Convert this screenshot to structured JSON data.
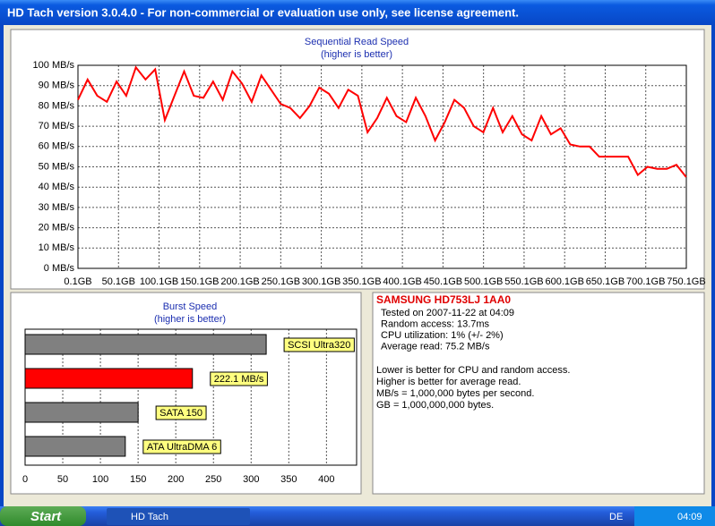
{
  "window": {
    "title": "HD Tach version 3.0.4.0  - For non-commercial or evaluation use only, see license agreement."
  },
  "chart_data": [
    {
      "type": "line",
      "title": "Sequential Read Speed",
      "subtitle": "(higher is better)",
      "x": [
        0.1,
        12,
        23.9,
        35.8,
        47.7,
        59.6,
        71.5,
        83.4,
        95.3,
        107.2,
        119.1,
        131,
        142.9,
        154.8,
        166.7,
        178.6,
        190.5,
        202.4,
        214.3,
        226.2,
        238.1,
        250,
        261.9,
        273.8,
        285.7,
        297.6,
        309.5,
        321.4,
        333.3,
        345.2,
        357.1,
        369,
        380.9,
        392.8,
        404.7,
        416.6,
        428.5,
        440.4,
        452.3,
        464.2,
        476.1,
        488,
        499.9,
        511.8,
        523.7,
        535.6,
        547.5,
        559.4,
        571.3,
        583.2,
        595.1,
        607,
        618.9,
        630.8,
        642.7,
        654.6,
        666.5,
        678.4,
        690.3,
        702.2,
        714.1,
        726,
        737.9,
        749.8
      ],
      "series": [
        {
          "name": "Read",
          "color": "#ff0000",
          "values": [
            83,
            93,
            85,
            82,
            92,
            85,
            99,
            93,
            98,
            73,
            85,
            97,
            85,
            84,
            92,
            83,
            97,
            91,
            82,
            95,
            88,
            81,
            79,
            74,
            80,
            89,
            86,
            79,
            88,
            85,
            67,
            74,
            84,
            75,
            72,
            84,
            75,
            63,
            72,
            83,
            79,
            70,
            67,
            79,
            67,
            75,
            66,
            63,
            75,
            66,
            69,
            61,
            60,
            60,
            55,
            55,
            55,
            55,
            46,
            50,
            49,
            49,
            51,
            45
          ]
        }
      ],
      "xlim": [
        0.1,
        750.1
      ],
      "xticks": [
        {
          "value": 0.1,
          "label": "0.1GB"
        },
        {
          "value": 50.1,
          "label": "50.1GB"
        },
        {
          "value": 100.1,
          "label": "100.1GB"
        },
        {
          "value": 150.1,
          "label": "150.1GB"
        },
        {
          "value": 200.1,
          "label": "200.1GB"
        },
        {
          "value": 250.1,
          "label": "250.1GB"
        },
        {
          "value": 300.1,
          "label": "300.1GB"
        },
        {
          "value": 350.1,
          "label": "350.1GB"
        },
        {
          "value": 400.1,
          "label": "400.1GB"
        },
        {
          "value": 450.1,
          "label": "450.1GB"
        },
        {
          "value": 500.1,
          "label": "500.1GB"
        },
        {
          "value": 550.1,
          "label": "550.1GB"
        },
        {
          "value": 600.1,
          "label": "600.1GB"
        },
        {
          "value": 650.1,
          "label": "650.1GB"
        },
        {
          "value": 700.1,
          "label": "700.1GB"
        },
        {
          "value": 750.1,
          "label": "750.1GB"
        }
      ],
      "ylim": [
        0,
        100
      ],
      "yticks": [
        {
          "value": 0,
          "label": "0 MB/s"
        },
        {
          "value": 10,
          "label": "10 MB/s"
        },
        {
          "value": 20,
          "label": "20 MB/s"
        },
        {
          "value": 30,
          "label": "30 MB/s"
        },
        {
          "value": 40,
          "label": "40 MB/s"
        },
        {
          "value": 50,
          "label": "50 MB/s"
        },
        {
          "value": 60,
          "label": "60 MB/s"
        },
        {
          "value": 70,
          "label": "70 MB/s"
        },
        {
          "value": 80,
          "label": "80 MB/s"
        },
        {
          "value": 90,
          "label": "90 MB/s"
        },
        {
          "value": 100,
          "label": "100 MB/s"
        }
      ],
      "grid": true
    },
    {
      "type": "barh",
      "title": "Burst Speed",
      "subtitle": "(higher is better)",
      "categories": [
        "SCSI Ultra320",
        "222.1 MB/s",
        "SATA 150",
        "ATA UltraDMA 6"
      ],
      "values": [
        320,
        222.1,
        150,
        133
      ],
      "colors": [
        "#808080",
        "#ff0000",
        "#808080",
        "#808080"
      ],
      "xlim": [
        0,
        440
      ],
      "xticks": [
        0,
        50,
        100,
        150,
        200,
        250,
        300,
        350,
        400
      ],
      "grid": true
    }
  ],
  "info": {
    "drive": "SAMSUNG HD753LJ 1AA0",
    "lines": [
      "Tested on 2007-11-22 at 04:09",
      "Random access: 13.7ms",
      "CPU utilization: 1% (+/- 2%)",
      "Average read: 75.2 MB/s"
    ],
    "notes": [
      "Lower is better for CPU and random access.",
      "Higher is better for average read.",
      "MB/s = 1,000,000 bytes per second.",
      "GB = 1,000,000,000 bytes."
    ]
  },
  "taskbar": {
    "start": "Start",
    "task": "HD Tach",
    "lang": "DE",
    "clock": "04:09"
  }
}
